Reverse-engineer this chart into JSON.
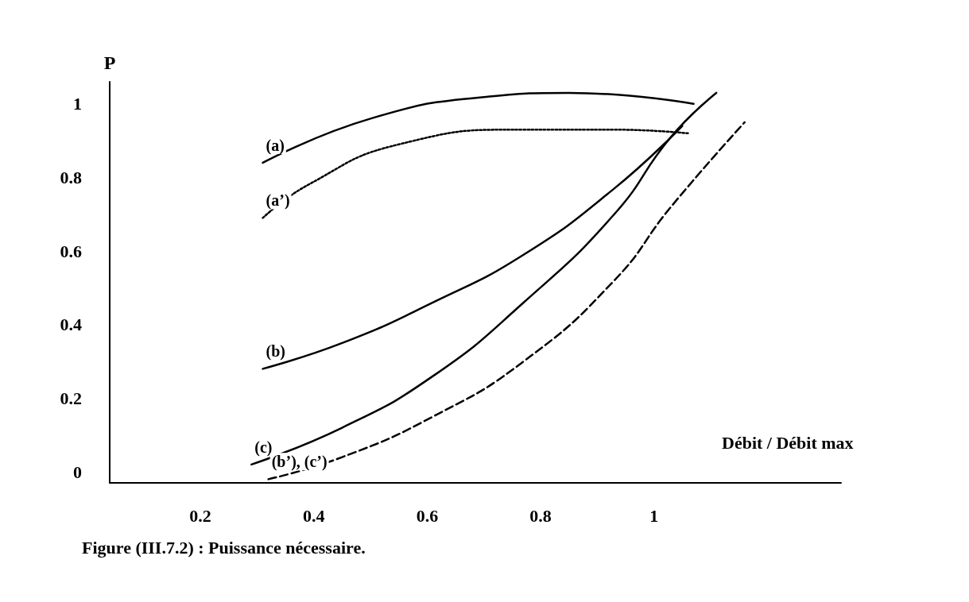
{
  "chart_data": {
    "type": "line",
    "xlabel": "Débit / Débit max",
    "ylabel": "P",
    "xlim": [
      0.04,
      1.33
    ],
    "ylim": [
      -0.03,
      1.06
    ],
    "xticks": [
      0.2,
      0.4,
      0.6,
      0.8,
      1
    ],
    "yticks": [
      0,
      0.2,
      0.4,
      0.6,
      0.8,
      1
    ],
    "grid": false,
    "legend": false,
    "marker": "none",
    "annotations": [
      "Figure (III.7.2) : Puissance nécessaire."
    ],
    "series": [
      {
        "name": "(a)",
        "color": "#000000",
        "line_style": "solid",
        "x": [
          0.31,
          0.5,
          0.71,
          0.85,
          1.07
        ],
        "values": [
          0.84,
          0.96,
          1.02,
          1.03,
          1.0
        ]
      },
      {
        "name": "(a’)",
        "color": "#000000",
        "line_style": "dotted",
        "x": [
          0.31,
          0.39,
          0.55,
          0.77,
          0.93,
          1.06
        ],
        "values": [
          0.69,
          0.78,
          0.89,
          0.93,
          0.93,
          0.92
        ]
      },
      {
        "name": "(b)",
        "color": "#000000",
        "line_style": "solid",
        "x": [
          0.31,
          0.45,
          0.61,
          0.77,
          0.93,
          1.05
        ],
        "values": [
          0.28,
          0.35,
          0.46,
          0.59,
          0.77,
          0.94
        ]
      },
      {
        "name": "(c)",
        "color": "#000000",
        "line_style": "solid",
        "x": [
          0.29,
          0.45,
          0.61,
          0.77,
          0.93,
          1.03,
          1.11
        ],
        "values": [
          0.02,
          0.12,
          0.26,
          0.46,
          0.7,
          0.91,
          1.03
        ]
      },
      {
        "name": "(b’), (c’)",
        "color": "#000000",
        "line_style": "dashed",
        "x": [
          0.32,
          0.45,
          0.61,
          0.77,
          0.93,
          1.03,
          1.16
        ],
        "values": [
          -0.02,
          0.04,
          0.15,
          0.3,
          0.52,
          0.72,
          0.95
        ]
      }
    ]
  }
}
